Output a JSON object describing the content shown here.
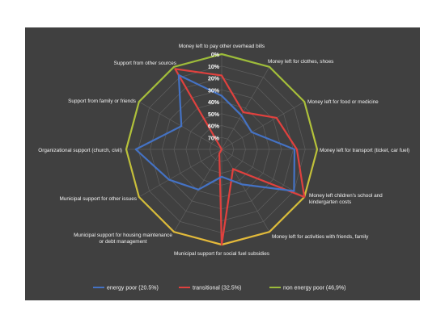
{
  "chart_data": {
    "type": "radar",
    "title": "",
    "categories": [
      "Money left to pay other overhead bills",
      "Money left for clothes, shoes",
      "Money left for food or medicine",
      "Money left for transport (ticket, car fuel)",
      "Money left children's school and kindergarten costs",
      "Money left for activities with friends, family",
      "Municipal support for social fuel subsidies",
      "Municipal support for housing maintenance or debt management",
      "Municipal support for other issues",
      "Organizational support (church, civil)",
      "Support from family or friends",
      "Support from other sources"
    ],
    "tick_labels": [
      "0%",
      "10%",
      "20%",
      "30%",
      "40%",
      "50%",
      "60%",
      "70%"
    ],
    "axis_range": [
      0,
      80
    ],
    "axis_reversed": true,
    "series": [
      {
        "name": "energy poor (20.5%)",
        "color": "#4472c4",
        "values": [
          35,
          47,
          51,
          19,
          10,
          46,
          57,
          41,
          29,
          8,
          41,
          8
        ]
      },
      {
        "name": "transitional (32.5%)",
        "color": "#e0413e",
        "values": [
          18,
          44,
          27,
          17,
          0,
          61,
          0,
          76,
          80,
          80,
          80,
          2
        ]
      },
      {
        "name": "non energy poor (46,9%)",
        "color": "#9bbb3a",
        "values": [
          0,
          0,
          0,
          0,
          0,
          0,
          0,
          0,
          0,
          0,
          0,
          0
        ]
      }
    ],
    "legend_position": "bottom",
    "grid": true
  }
}
